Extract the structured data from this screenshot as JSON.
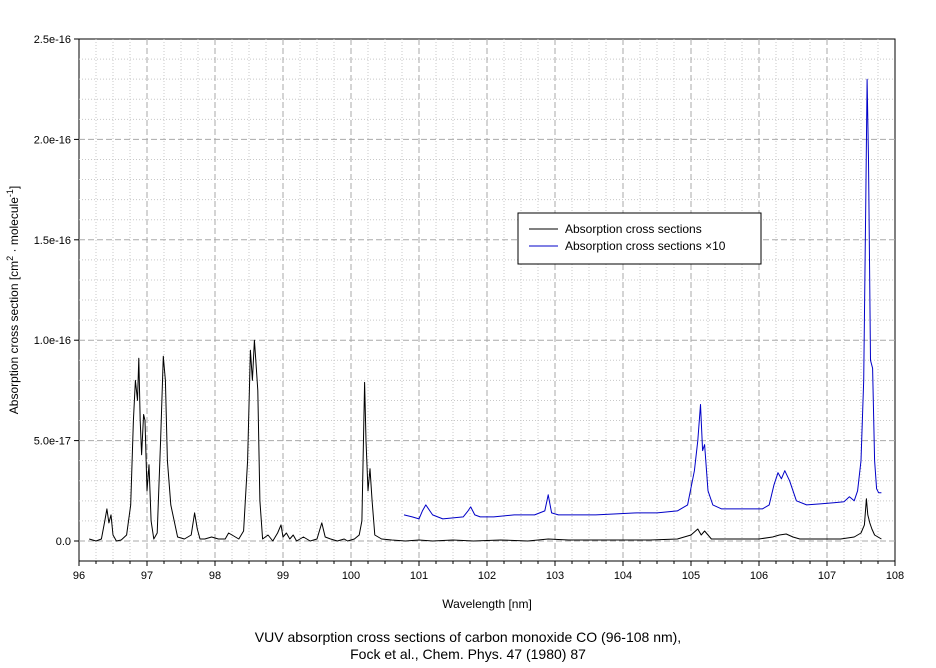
{
  "caption": {
    "line1": "VUV absorption cross sections of carbon monoxide CO (96-108 nm),",
    "line2": "Fock et al., Chem. Phys. 47 (1980) 87"
  },
  "chart_data": {
    "type": "line",
    "title": "",
    "xlabel": "Wavelength [nm]",
    "ylabel_main": "Absorption cross section [cm",
    "ylabel_sup1": "2",
    "ylabel_mid": " · molecule",
    "ylabel_sup2": "-1",
    "ylabel_end": "]",
    "xlim": [
      96,
      108
    ],
    "ylim": [
      -2e-18,
      2.5e-16
    ],
    "x_ticks": [
      96,
      97,
      98,
      99,
      100,
      101,
      102,
      103,
      104,
      105,
      106,
      107,
      108
    ],
    "x_tick_labels": [
      "96",
      "97",
      "98",
      "99",
      "100",
      "101",
      "102",
      "103",
      "104",
      "105",
      "106",
      "107",
      "108"
    ],
    "y_ticks": [
      0,
      5e-17,
      1e-16,
      1.5e-16,
      2e-16,
      2.5e-16
    ],
    "y_tick_labels": [
      "0.0",
      "5.0e-17",
      "1.0e-16",
      "1.5e-16",
      "2.0e-16",
      "2.5e-16"
    ],
    "grid": true,
    "legend_position": "upper-center-right",
    "series": [
      {
        "name": "Absorption cross sections",
        "color": "#000000",
        "x": [
          96.15,
          96.25,
          96.33,
          96.38,
          96.41,
          96.44,
          96.47,
          96.5,
          96.55,
          96.62,
          96.7,
          96.76,
          96.8,
          96.83,
          96.86,
          96.88,
          96.9,
          96.92,
          96.95,
          96.97,
          97.0,
          97.03,
          97.06,
          97.1,
          97.15,
          97.2,
          97.24,
          97.27,
          97.3,
          97.35,
          97.45,
          97.55,
          97.65,
          97.7,
          97.74,
          97.78,
          97.85,
          97.95,
          98.05,
          98.15,
          98.2,
          98.25,
          98.3,
          98.35,
          98.42,
          98.48,
          98.52,
          98.55,
          98.58,
          98.6,
          98.63,
          98.66,
          98.7,
          98.78,
          98.85,
          98.92,
          98.97,
          99.0,
          99.05,
          99.1,
          99.15,
          99.2,
          99.3,
          99.4,
          99.5,
          99.57,
          99.62,
          99.7,
          99.8,
          99.9,
          99.95,
          100.05,
          100.12,
          100.16,
          100.2,
          100.22,
          100.25,
          100.28,
          100.31,
          100.35,
          100.45,
          100.6,
          100.8,
          101.0,
          101.2,
          101.5,
          101.8,
          102.2,
          102.6,
          102.9,
          103.2,
          103.6,
          104.0,
          104.4,
          104.8,
          105.0,
          105.1,
          105.15,
          105.2,
          105.3,
          105.5,
          105.8,
          106.0,
          106.2,
          106.3,
          106.4,
          106.5,
          106.6,
          106.8,
          107.0,
          107.2,
          107.4,
          107.5,
          107.55,
          107.58,
          107.6,
          107.63,
          107.66,
          107.7,
          107.75,
          107.8
        ],
        "values": [
          1e-18,
          0,
          1e-18,
          1e-17,
          1.6e-17,
          9e-18,
          1.3e-17,
          3e-18,
          0,
          5e-19,
          3e-18,
          1.8e-17,
          6e-17,
          8e-17,
          7e-17,
          9.1e-17,
          6e-17,
          4.3e-17,
          6.3e-17,
          6e-17,
          2.5e-17,
          3.8e-17,
          1e-17,
          1e-18,
          4e-18,
          5e-17,
          9.2e-17,
          8e-17,
          4e-17,
          1.8e-17,
          2e-18,
          1e-18,
          3e-18,
          1.4e-17,
          6e-18,
          1e-18,
          1e-18,
          2e-18,
          1e-18,
          1e-18,
          4e-18,
          3e-18,
          2e-18,
          1e-18,
          5e-18,
          4e-17,
          9.5e-17,
          8e-17,
          1e-16,
          9e-17,
          7.5e-17,
          2e-17,
          1e-18,
          3e-18,
          0,
          4e-18,
          8e-18,
          2e-18,
          4e-18,
          1e-18,
          3e-18,
          0,
          2e-18,
          0,
          1e-18,
          9e-18,
          2e-18,
          1e-18,
          0,
          1e-18,
          0,
          1e-18,
          3e-18,
          1e-17,
          7.9e-17,
          5e-17,
          2.5e-17,
          3.6e-17,
          2e-17,
          3e-18,
          1e-18,
          5e-19,
          0,
          5e-19,
          0,
          5e-19,
          0,
          5e-19,
          0,
          1e-18,
          5e-19,
          5e-19,
          5e-19,
          5e-19,
          1e-18,
          3e-18,
          6e-18,
          3e-18,
          5e-18,
          1e-18,
          1e-18,
          1e-18,
          1e-18,
          2e-18,
          3e-18,
          3.5e-18,
          2e-18,
          1e-18,
          1e-18,
          1e-18,
          1e-18,
          2e-18,
          4e-18,
          8e-18,
          2.1e-17,
          1.3e-17,
          9e-18,
          6e-18,
          3e-18,
          2e-18,
          1e-18
        ]
      },
      {
        "name": "Absorption cross sections ×10",
        "color": "#0000c8",
        "x": [
          100.78,
          100.9,
          101.0,
          101.05,
          101.1,
          101.2,
          101.35,
          101.5,
          101.65,
          101.72,
          101.76,
          101.82,
          101.9,
          102.1,
          102.4,
          102.7,
          102.85,
          102.9,
          102.95,
          103.05,
          103.3,
          103.6,
          103.9,
          104.2,
          104.5,
          104.8,
          104.95,
          105.05,
          105.1,
          105.14,
          105.17,
          105.2,
          105.25,
          105.32,
          105.45,
          105.65,
          105.85,
          106.05,
          106.15,
          106.22,
          106.28,
          106.33,
          106.38,
          106.45,
          106.55,
          106.7,
          106.9,
          107.1,
          107.25,
          107.33,
          107.4,
          107.45,
          107.5,
          107.54,
          107.57,
          107.59,
          107.61,
          107.64,
          107.67,
          107.7,
          107.73,
          107.76,
          107.8
        ],
        "values": [
          1.3e-17,
          1.2e-17,
          1.1e-17,
          1.5e-17,
          1.8e-17,
          1.3e-17,
          1.1e-17,
          1.15e-17,
          1.2e-17,
          1.5e-17,
          1.7e-17,
          1.3e-17,
          1.2e-17,
          1.2e-17,
          1.3e-17,
          1.3e-17,
          1.5e-17,
          2.3e-17,
          1.4e-17,
          1.3e-17,
          1.3e-17,
          1.3e-17,
          1.35e-17,
          1.4e-17,
          1.4e-17,
          1.5e-17,
          1.8e-17,
          3.5e-17,
          5e-17,
          6.8e-17,
          4.5e-17,
          4.8e-17,
          2.5e-17,
          1.8e-17,
          1.6e-17,
          1.6e-17,
          1.6e-17,
          1.6e-17,
          1.8e-17,
          2.8e-17,
          3.4e-17,
          3.1e-17,
          3.5e-17,
          3e-17,
          2e-17,
          1.8e-17,
          1.85e-17,
          1.9e-17,
          1.95e-17,
          2.2e-17,
          2e-17,
          2.5e-17,
          4e-17,
          8e-17,
          1.7e-16,
          2.3e-16,
          1.9e-16,
          9e-17,
          8.6e-17,
          4e-17,
          2.6e-17,
          2.4e-17,
          2.4e-17
        ]
      }
    ]
  }
}
